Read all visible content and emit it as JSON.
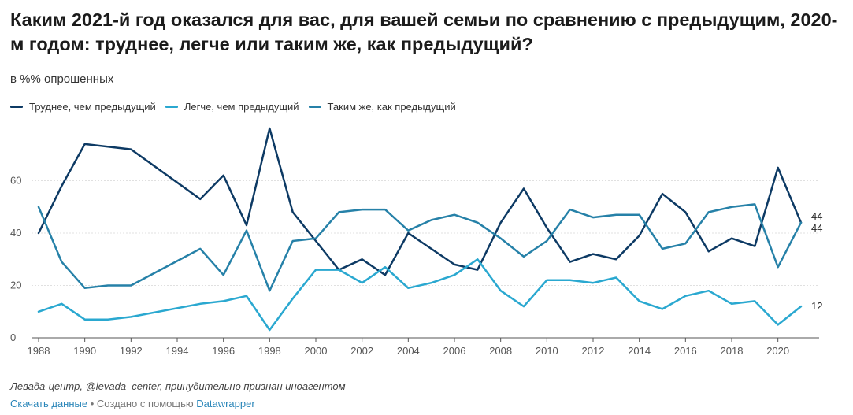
{
  "title": "Каким 2021-й год оказался для вас, для вашей семьи по сравнению с предыдущим, 2020-м годом: труднее, легче или таким же, как предыдущий?",
  "subtitle": "в %% опрошенных",
  "source": "Левада-центр, @levada_center, принудительно признан иноагентом",
  "footer": {
    "download_label": "Скачать данные",
    "separator": " • Создано с помощью ",
    "tool_label": "Datawrapper"
  },
  "colors": {
    "harder": "#0d3a64",
    "easier": "#2aa8d0",
    "same": "#2681a8",
    "grid": "#e0e0e0",
    "axis": "#555555"
  },
  "chart_data": {
    "type": "line",
    "xlim": [
      1988,
      2021
    ],
    "ylim": [
      0,
      80
    ],
    "yticks": [
      0,
      20,
      40,
      60
    ],
    "xticks": [
      1988,
      1990,
      1992,
      1994,
      1996,
      1998,
      2000,
      2002,
      2004,
      2006,
      2008,
      2010,
      2012,
      2014,
      2016,
      2018,
      2020
    ],
    "grid": "horizontal",
    "legend_position": "top-left",
    "series": [
      {
        "name": "Труднее, чем предыдущий",
        "color_key": "harder",
        "end_label": "44",
        "points": [
          [
            1988,
            40
          ],
          [
            1989,
            58
          ],
          [
            1990,
            74
          ],
          [
            1992,
            72
          ],
          [
            1995,
            53
          ],
          [
            1996,
            62
          ],
          [
            1997,
            43
          ],
          [
            1998,
            80
          ],
          [
            1999,
            48
          ],
          [
            2000,
            37
          ],
          [
            2001,
            26
          ],
          [
            2002,
            30
          ],
          [
            2003,
            24
          ],
          [
            2004,
            40
          ],
          [
            2006,
            28
          ],
          [
            2007,
            26
          ],
          [
            2008,
            44
          ],
          [
            2009,
            57
          ],
          [
            2010,
            42
          ],
          [
            2011,
            29
          ],
          [
            2012,
            32
          ],
          [
            2013,
            30
          ],
          [
            2014,
            39
          ],
          [
            2015,
            55
          ],
          [
            2016,
            48
          ],
          [
            2017,
            33
          ],
          [
            2018,
            38
          ],
          [
            2019,
            35
          ],
          [
            2020,
            65
          ],
          [
            2021,
            44
          ]
        ]
      },
      {
        "name": "Легче, чем предыдущий",
        "color_key": "easier",
        "end_label": "12",
        "points": [
          [
            1988,
            10
          ],
          [
            1989,
            13
          ],
          [
            1990,
            7
          ],
          [
            1991,
            7
          ],
          [
            1992,
            8
          ],
          [
            1995,
            13
          ],
          [
            1996,
            14
          ],
          [
            1997,
            16
          ],
          [
            1998,
            3
          ],
          [
            1999,
            15
          ],
          [
            2000,
            26
          ],
          [
            2001,
            26
          ],
          [
            2002,
            21
          ],
          [
            2003,
            27
          ],
          [
            2004,
            19
          ],
          [
            2005,
            21
          ],
          [
            2006,
            24
          ],
          [
            2007,
            30
          ],
          [
            2008,
            18
          ],
          [
            2009,
            12
          ],
          [
            2010,
            22
          ],
          [
            2011,
            22
          ],
          [
            2012,
            21
          ],
          [
            2013,
            23
          ],
          [
            2014,
            14
          ],
          [
            2015,
            11
          ],
          [
            2016,
            16
          ],
          [
            2017,
            18
          ],
          [
            2018,
            13
          ],
          [
            2019,
            14
          ],
          [
            2020,
            5
          ],
          [
            2021,
            12
          ]
        ]
      },
      {
        "name": "Таким  же, как предыдущий",
        "color_key": "same",
        "end_label": "44",
        "points": [
          [
            1988,
            50
          ],
          [
            1989,
            29
          ],
          [
            1990,
            19
          ],
          [
            1991,
            20
          ],
          [
            1992,
            20
          ],
          [
            1995,
            34
          ],
          [
            1996,
            24
          ],
          [
            1997,
            41
          ],
          [
            1998,
            18
          ],
          [
            1999,
            37
          ],
          [
            2000,
            38
          ],
          [
            2001,
            48
          ],
          [
            2002,
            49
          ],
          [
            2003,
            49
          ],
          [
            2004,
            41
          ],
          [
            2005,
            45
          ],
          [
            2006,
            47
          ],
          [
            2007,
            44
          ],
          [
            2008,
            38
          ],
          [
            2009,
            31
          ],
          [
            2010,
            37
          ],
          [
            2011,
            49
          ],
          [
            2012,
            46
          ],
          [
            2013,
            47
          ],
          [
            2014,
            47
          ],
          [
            2015,
            34
          ],
          [
            2016,
            36
          ],
          [
            2017,
            48
          ],
          [
            2018,
            50
          ],
          [
            2019,
            51
          ],
          [
            2020,
            27
          ],
          [
            2021,
            44
          ]
        ]
      }
    ]
  }
}
